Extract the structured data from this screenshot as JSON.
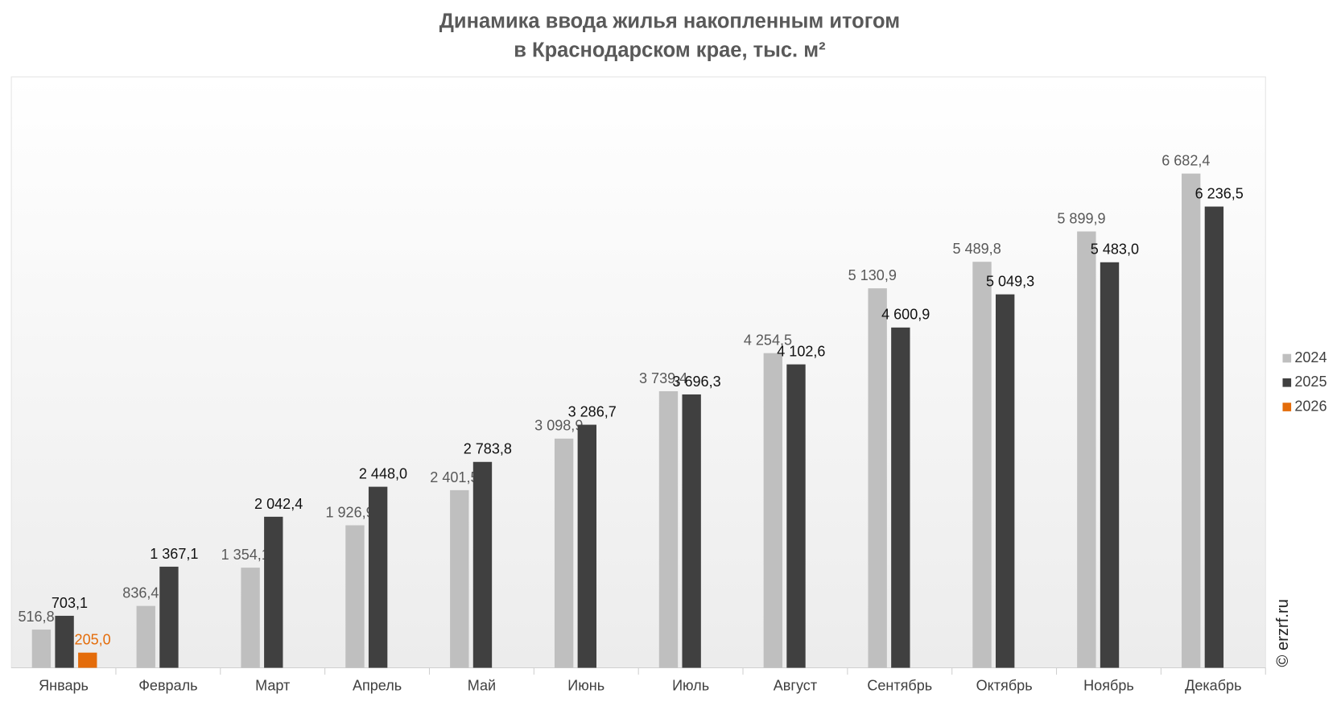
{
  "chart_data": {
    "type": "bar",
    "title": [
      "Динамика ввода жилья накопленным итогом",
      "в Краснодарском крае, тыс. м²"
    ],
    "watermark": "© erzrf.ru",
    "legend": "right",
    "categories": [
      "Январь",
      "Февраль",
      "Март",
      "Апрель",
      "Май",
      "Июнь",
      "Июль",
      "Август",
      "Сентябрь",
      "Октябрь",
      "Ноябрь",
      "Декабрь"
    ],
    "series": [
      {
        "name": "2024",
        "color": "#bfbfbf",
        "label_color": "#595959",
        "values": [
          516.8,
          836.4,
          1354.1,
          1926.9,
          2401.5,
          3098.9,
          3739.4,
          4254.5,
          5130.9,
          5489.8,
          5899.9,
          6682.4
        ],
        "value_labels": [
          "516,8",
          "836,4",
          "1 354,1",
          "1 926,9",
          "2 401,5",
          "3 098,9",
          "3 739,4",
          "4 254,5",
          "5 130,9",
          "5 489,8",
          "5 899,9",
          "6 682,4"
        ]
      },
      {
        "name": "2025",
        "color": "#404040",
        "label_color": "#111111",
        "values": [
          703.1,
          1367.1,
          2042.4,
          2448.0,
          2783.8,
          3286.7,
          3696.3,
          4102.6,
          4600.9,
          5049.3,
          5483.0,
          6236.5
        ],
        "value_labels": [
          "703,1",
          "1 367,1",
          "2 042,4",
          "2 448,0",
          "2 783,8",
          "3 286,7",
          "3 696,3",
          "4 102,6",
          "4 600,9",
          "5 049,3",
          "5 483,0",
          "6 236,5"
        ]
      },
      {
        "name": "2026",
        "color": "#e46c0a",
        "label_color": "#e46c0a",
        "values": [
          205.0,
          null,
          null,
          null,
          null,
          null,
          null,
          null,
          null,
          null,
          null,
          null
        ],
        "value_labels": [
          "205,0",
          null,
          null,
          null,
          null,
          null,
          null,
          null,
          null,
          null,
          null,
          null
        ]
      }
    ]
  }
}
